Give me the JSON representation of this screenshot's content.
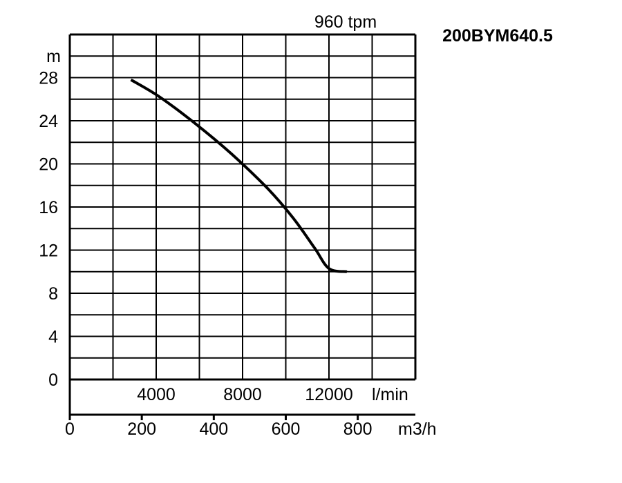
{
  "chart_data": {
    "type": "line",
    "title": "200BYM640.5",
    "subtitle": "960 tpm",
    "ylabel": "m",
    "ylim": [
      0,
      32
    ],
    "y_ticks": [
      "0",
      "4",
      "8",
      "12",
      "16",
      "20",
      "24",
      "28"
    ],
    "xlim_m3h": [
      0,
      960
    ],
    "x_ticks_m3h": [
      "0",
      "200",
      "400",
      "600",
      "800"
    ],
    "x_unit_m3h": "m3/h",
    "x_ticks_lmin": [
      "4000",
      "8000",
      "12000"
    ],
    "x_unit_lmin": "l/min",
    "grid": true,
    "series": [
      {
        "x": [
          170,
          250,
          350,
          450,
          550,
          620,
          680,
          720,
          770
        ],
        "y": [
          27.8,
          26.2,
          23.7,
          20.9,
          17.7,
          15.0,
          12.2,
          10.3,
          10.0
        ]
      }
    ]
  }
}
